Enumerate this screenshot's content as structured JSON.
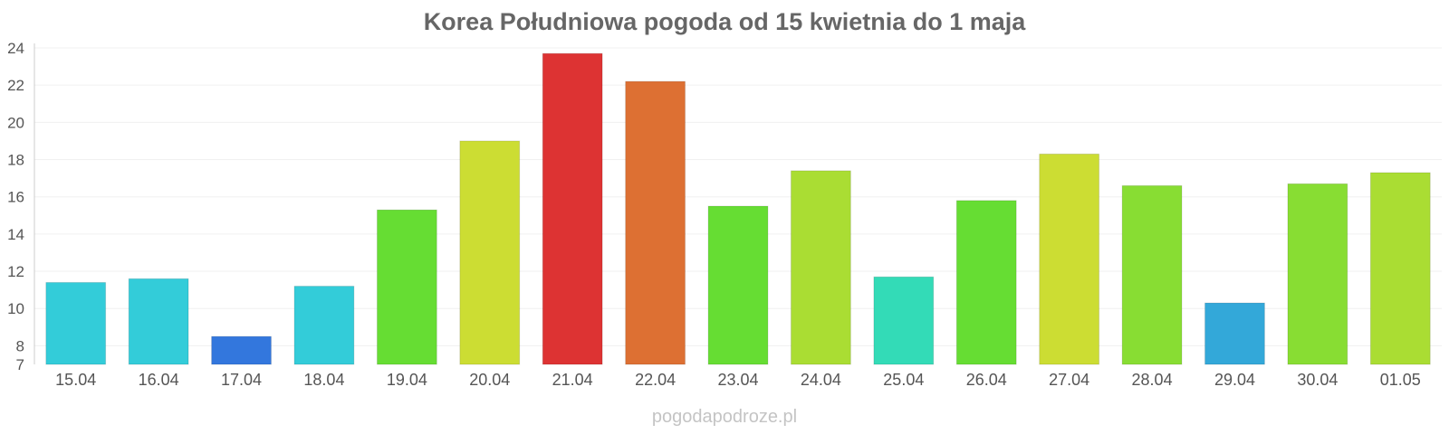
{
  "chart_data": {
    "type": "bar",
    "title": "Korea Południowa pogoda od 15 kwietnia do 1 maja",
    "xlabel": "",
    "ylabel": "",
    "ylim": [
      7,
      24
    ],
    "yticks": [
      7,
      8,
      10,
      12,
      14,
      16,
      18,
      20,
      22,
      24
    ],
    "grid": true,
    "legend": "none",
    "categories": [
      "15.04",
      "16.04",
      "17.04",
      "18.04",
      "19.04",
      "20.04",
      "21.04",
      "22.04",
      "23.04",
      "24.04",
      "25.04",
      "26.04",
      "27.04",
      "28.04",
      "29.04",
      "30.04",
      "01.05"
    ],
    "values": [
      11.4,
      11.6,
      8.5,
      11.2,
      15.3,
      19.0,
      23.7,
      22.2,
      15.5,
      17.4,
      11.7,
      15.8,
      18.3,
      16.6,
      10.3,
      16.7,
      17.3
    ],
    "colors": [
      "#33ccd9",
      "#33ccd9",
      "#3377dd",
      "#33ccd9",
      "#66dd33",
      "#ccdd33",
      "#dd3333",
      "#dd7033",
      "#66dd33",
      "#aadd33",
      "#33dbb7",
      "#66dd33",
      "#ccdd33",
      "#88dd33",
      "#33a8d9",
      "#88dd33",
      "#aadd33"
    ]
  },
  "footer": {
    "credit": "pogodapodroze.pl"
  }
}
